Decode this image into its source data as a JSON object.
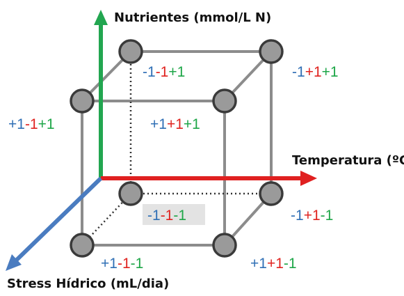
{
  "axes": {
    "nutrients_label": "Nutrientes (mmol/L N)",
    "temperature_label": "Temperatura (ºC)",
    "water_stress_label": "Stress Hídrico (mL/dia)"
  },
  "colors": {
    "stress_axis": "#4a7cc0",
    "temperature_axis": "#e02020",
    "nutrients_axis": "#22a650",
    "cube_edge": "#8c8c8c",
    "vertex_fill": "#9a9a9a",
    "vertex_stroke": "#3a3a3a",
    "highlight_box": "#e3e3e3"
  },
  "vertices": {
    "back_top_left": {
      "stress": "-1",
      "temperature": "-1",
      "nutrients": "+1"
    },
    "back_top_right": {
      "stress": "-1",
      "temperature": "+1",
      "nutrients": "+1"
    },
    "front_top_left": {
      "stress": "+1",
      "temperature": "-1",
      "nutrients": "+1"
    },
    "front_top_right": {
      "stress": "+1",
      "temperature": "+1",
      "nutrients": "+1"
    },
    "back_bottom_left": {
      "stress": "-1",
      "temperature": "-1",
      "nutrients": "-1"
    },
    "back_bottom_right": {
      "stress": "-1",
      "temperature": "+1",
      "nutrients": "-1"
    },
    "front_bottom_left": {
      "stress": "+1",
      "temperature": "-1",
      "nutrients": "-1"
    },
    "front_bottom_right": {
      "stress": "+1",
      "temperature": "+1",
      "nutrients": "-1"
    }
  }
}
